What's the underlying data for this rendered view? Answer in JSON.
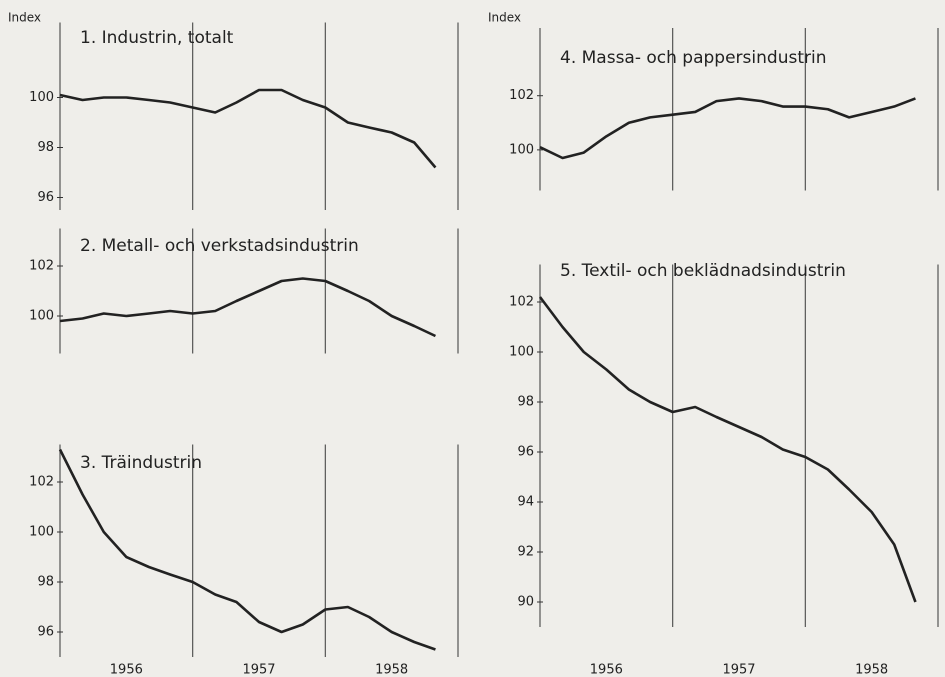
{
  "chart_data": [
    {
      "type": "line",
      "title": "1. Industrin, totalt",
      "y_label": "Index",
      "x": [
        1956.0,
        1956.17,
        1956.33,
        1956.5,
        1956.67,
        1956.83,
        1957.0,
        1957.17,
        1957.33,
        1957.5,
        1957.67,
        1957.83,
        1958.0,
        1958.17,
        1958.33,
        1958.5,
        1958.67,
        1958.83
      ],
      "series": [
        {
          "name": "1. Industrin, totalt",
          "color": "#222222",
          "values": [
            100.1,
            99.9,
            100.0,
            100.0,
            99.9,
            99.8,
            99.6,
            99.4,
            99.8,
            100.3,
            100.3,
            99.9,
            99.6,
            99.0,
            98.8,
            98.6,
            98.2,
            97.2
          ]
        }
      ],
      "xlim": [
        1956,
        1959
      ],
      "xgrid": [
        1956,
        1957,
        1958,
        1959
      ],
      "ylim": [
        95.5,
        103
      ],
      "yticks": [
        96,
        98,
        100
      ]
    },
    {
      "type": "line",
      "title": "2. Metall- och verkstadsindustrin",
      "x": [
        1956.0,
        1956.17,
        1956.33,
        1956.5,
        1956.67,
        1956.83,
        1957.0,
        1957.17,
        1957.33,
        1957.5,
        1957.67,
        1957.83,
        1958.0,
        1958.17,
        1958.33,
        1958.5,
        1958.67,
        1958.83
      ],
      "series": [
        {
          "name": "2. Metall- och verkstadsindustrin",
          "color": "#222222",
          "values": [
            99.8,
            99.9,
            100.1,
            100.0,
            100.1,
            100.2,
            100.1,
            100.2,
            100.6,
            101.0,
            101.4,
            101.5,
            101.4,
            101.0,
            100.6,
            100.0,
            99.6,
            99.2
          ]
        }
      ],
      "xlim": [
        1956,
        1959
      ],
      "xgrid": [
        1956,
        1957,
        1958,
        1959
      ],
      "ylim": [
        98.5,
        103.5
      ],
      "yticks": [
        100,
        102
      ]
    },
    {
      "type": "line",
      "title": "3. Träindustrin",
      "x": [
        1956.0,
        1956.17,
        1956.33,
        1956.5,
        1956.67,
        1956.83,
        1957.0,
        1957.17,
        1957.33,
        1957.5,
        1957.67,
        1957.83,
        1958.0,
        1958.17,
        1958.33,
        1958.5,
        1958.67,
        1958.83
      ],
      "series": [
        {
          "name": "3. Träindustrin",
          "color": "#222222",
          "values": [
            103.3,
            101.5,
            100.0,
            99.0,
            98.6,
            98.3,
            98.0,
            97.5,
            97.2,
            96.4,
            96.0,
            96.3,
            96.9,
            97.0,
            96.6,
            96.0,
            95.6,
            95.3
          ]
        }
      ],
      "xlim": [
        1956,
        1959
      ],
      "xgrid": [
        1956,
        1957,
        1958,
        1959
      ],
      "ylim": [
        95,
        103.5
      ],
      "yticks": [
        96,
        98,
        100,
        102
      ],
      "xticks": [
        {
          "value": 1956.5,
          "label": "1956"
        },
        {
          "value": 1957.5,
          "label": "1957"
        },
        {
          "value": 1958.5,
          "label": "1958"
        }
      ]
    },
    {
      "type": "line",
      "title": "4. Massa- och pappersindustrin",
      "y_label": "Index",
      "x": [
        1956.0,
        1956.17,
        1956.33,
        1956.5,
        1956.67,
        1956.83,
        1957.0,
        1957.17,
        1957.33,
        1957.5,
        1957.67,
        1957.83,
        1958.0,
        1958.17,
        1958.33,
        1958.5,
        1958.67,
        1958.83
      ],
      "series": [
        {
          "name": "4. Massa- och pappersindustrin",
          "color": "#222222",
          "values": [
            100.1,
            99.7,
            99.9,
            100.5,
            101.0,
            101.2,
            101.3,
            101.4,
            101.8,
            101.9,
            101.8,
            101.6,
            101.6,
            101.5,
            101.2,
            101.4,
            101.6,
            101.9
          ]
        }
      ],
      "xlim": [
        1956,
        1959
      ],
      "xgrid": [
        1956,
        1957,
        1958,
        1959
      ],
      "ylim": [
        98.5,
        104.5
      ],
      "yticks": [
        100,
        102
      ]
    },
    {
      "type": "line",
      "title": "5. Textil- och beklädnadsindustrin",
      "x": [
        1956.0,
        1956.17,
        1956.33,
        1956.5,
        1956.67,
        1956.83,
        1957.0,
        1957.17,
        1957.33,
        1957.5,
        1957.67,
        1957.83,
        1958.0,
        1958.17,
        1958.33,
        1958.5,
        1958.67,
        1958.83
      ],
      "series": [
        {
          "name": "5. Textil- och beklädnadsindustrin",
          "color": "#222222",
          "values": [
            102.2,
            101.0,
            100.0,
            99.3,
            98.5,
            98.0,
            97.6,
            97.8,
            97.4,
            97.0,
            96.6,
            96.1,
            95.8,
            95.3,
            94.5,
            93.6,
            92.3,
            90.0
          ]
        }
      ],
      "xlim": [
        1956,
        1959
      ],
      "xgrid": [
        1956,
        1957,
        1958,
        1959
      ],
      "ylim": [
        89,
        103.5
      ],
      "yticks": [
        90,
        92,
        94,
        96,
        98,
        100,
        102
      ],
      "xticks": [
        {
          "value": 1956.5,
          "label": "1956"
        },
        {
          "value": 1957.5,
          "label": "1957"
        },
        {
          "value": 1958.5,
          "label": "1958"
        }
      ]
    }
  ]
}
